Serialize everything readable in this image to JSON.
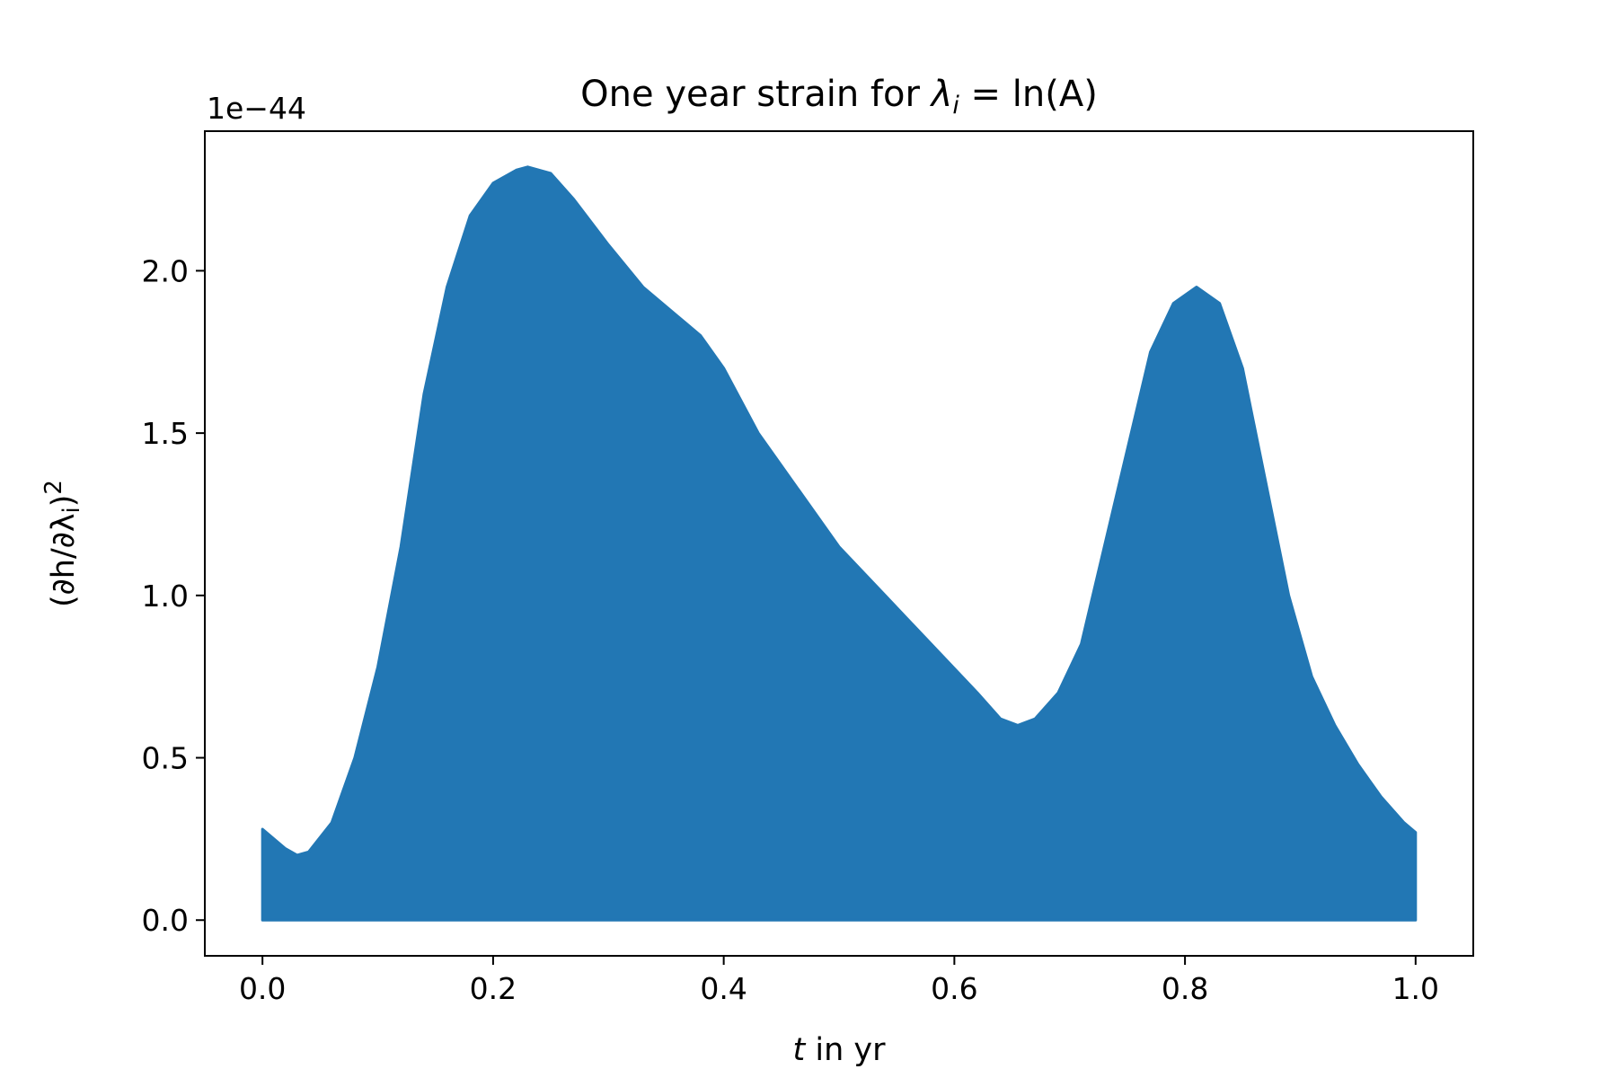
{
  "chart_data": {
    "type": "area",
    "title": "One year strain for λᵢ = ln(A)",
    "xlabel": "t in yr",
    "ylabel": "(∂h/∂λᵢ)²",
    "y_offset_text": "1e−44",
    "xlim": [
      -0.05,
      1.05
    ],
    "ylim": [
      -0.11,
      2.43
    ],
    "x_ticks": [
      "0.0",
      "0.2",
      "0.4",
      "0.6",
      "0.8",
      "1.0"
    ],
    "y_ticks": [
      "0.0",
      "0.5",
      "1.0",
      "1.5",
      "2.0"
    ],
    "grid": false,
    "color": "#2277b4",
    "series": [
      {
        "x": [
          0.0,
          0.02,
          0.03,
          0.04,
          0.06,
          0.08,
          0.1,
          0.12,
          0.14,
          0.16,
          0.18,
          0.2,
          0.22,
          0.23,
          0.25,
          0.27,
          0.3,
          0.33,
          0.36,
          0.38,
          0.4,
          0.43,
          0.46,
          0.5,
          0.54,
          0.58,
          0.62,
          0.64,
          0.655,
          0.67,
          0.69,
          0.71,
          0.73,
          0.75,
          0.77,
          0.79,
          0.81,
          0.83,
          0.85,
          0.87,
          0.89,
          0.91,
          0.93,
          0.95,
          0.97,
          0.99,
          1.0
        ],
        "upper": [
          0.28,
          0.22,
          0.2,
          0.21,
          0.3,
          0.5,
          0.78,
          1.15,
          1.62,
          1.95,
          2.17,
          2.27,
          2.31,
          2.32,
          2.3,
          2.22,
          2.08,
          1.95,
          1.86,
          1.8,
          1.7,
          1.5,
          1.35,
          1.15,
          1.0,
          0.85,
          0.7,
          0.62,
          0.6,
          0.62,
          0.7,
          0.85,
          1.15,
          1.45,
          1.75,
          1.9,
          1.95,
          1.9,
          1.7,
          1.35,
          1.0,
          0.75,
          0.6,
          0.48,
          0.38,
          0.3,
          0.27
        ],
        "lower": [
          0.0,
          0.0,
          0.0,
          0.0,
          0.0,
          0.0,
          0.0,
          0.0,
          0.0,
          0.0,
          0.0,
          0.0,
          0.0,
          0.0,
          0.0,
          0.0,
          0.0,
          0.0,
          0.0,
          0.0,
          0.0,
          0.0,
          0.0,
          0.0,
          0.0,
          0.0,
          0.0,
          0.0,
          0.0,
          0.0,
          0.0,
          0.0,
          0.0,
          0.0,
          0.0,
          0.0,
          0.0,
          0.0,
          0.0,
          0.0,
          0.0,
          0.0,
          0.0,
          0.0,
          0.0,
          0.0,
          0.0
        ]
      }
    ]
  }
}
